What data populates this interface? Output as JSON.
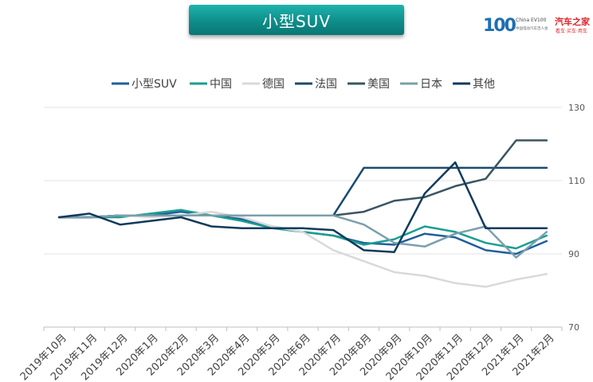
{
  "header": {
    "title": "小型SUV",
    "logo": {
      "mark": "100",
      "org_en": "China EV100",
      "org_cn": "中国电动汽车百人会",
      "partner": "汽车之家",
      "slogan": "看车·买车·用车"
    }
  },
  "chart_data": {
    "type": "line",
    "title": "小型SUV",
    "categories": [
      "2019年10月",
      "2019年11月",
      "2019年12月",
      "2020年1月",
      "2020年2月",
      "2020年3月",
      "2020年4月",
      "2020年5月",
      "2020年6月",
      "2020年7月",
      "2020年8月",
      "2020年9月",
      "2020年10月",
      "2020年11月",
      "2020年12月",
      "2021年1月",
      "2021年2月"
    ],
    "ylim": [
      70,
      130
    ],
    "yticks": [
      70,
      90,
      110,
      130
    ],
    "y_axis_side": "right",
    "grid": true,
    "legend_position": "top",
    "series": [
      {
        "name": "小型SUV",
        "color": "#1f5f9b",
        "width": 2.5,
        "values": [
          100,
          100,
          100.5,
          100.5,
          101.5,
          100.5,
          99.5,
          97.5,
          96,
          95,
          93,
          92.5,
          95.5,
          94.5,
          91,
          90,
          93.5
        ]
      },
      {
        "name": "中国",
        "color": "#1a9e8f",
        "width": 2.5,
        "values": [
          100,
          100,
          100,
          101,
          102,
          100.5,
          99,
          97,
          96,
          95,
          92.5,
          94,
          97.5,
          96,
          93,
          91.5,
          95
        ]
      },
      {
        "name": "德国",
        "color": "#d9d9d9",
        "width": 2.5,
        "values": [
          100,
          100,
          100.5,
          100,
          100.5,
          101.5,
          100,
          97.5,
          96,
          91,
          88,
          85,
          84,
          82,
          81,
          83,
          84.5
        ]
      },
      {
        "name": "法国",
        "color": "#1b4a6e",
        "width": 2.5,
        "values": [
          100,
          100,
          100.5,
          100.5,
          100.5,
          100.5,
          100.5,
          100.5,
          100.5,
          100.5,
          113.5,
          113.5,
          113.5,
          113.5,
          113.5,
          113.5,
          113.5
        ]
      },
      {
        "name": "美国",
        "color": "#3b5561",
        "width": 2.5,
        "values": [
          100,
          100,
          100.5,
          100.5,
          100.5,
          100.5,
          100.5,
          100.5,
          100.5,
          100.5,
          101.5,
          104.5,
          105.5,
          108.5,
          110.5,
          121,
          121
        ]
      },
      {
        "name": "日本",
        "color": "#7a9fad",
        "width": 2.5,
        "values": [
          100,
          100,
          100.5,
          100.5,
          100.5,
          100.5,
          100.5,
          100.5,
          100.5,
          100.5,
          98,
          93,
          92,
          95.5,
          97.5,
          89,
          96
        ]
      },
      {
        "name": "其他",
        "color": "#0f3a5c",
        "width": 2.5,
        "values": [
          100,
          101,
          98,
          99,
          100,
          97.5,
          97,
          97,
          97,
          96.5,
          91,
          90.5,
          106.5,
          115,
          97,
          97,
          97
        ]
      }
    ]
  }
}
